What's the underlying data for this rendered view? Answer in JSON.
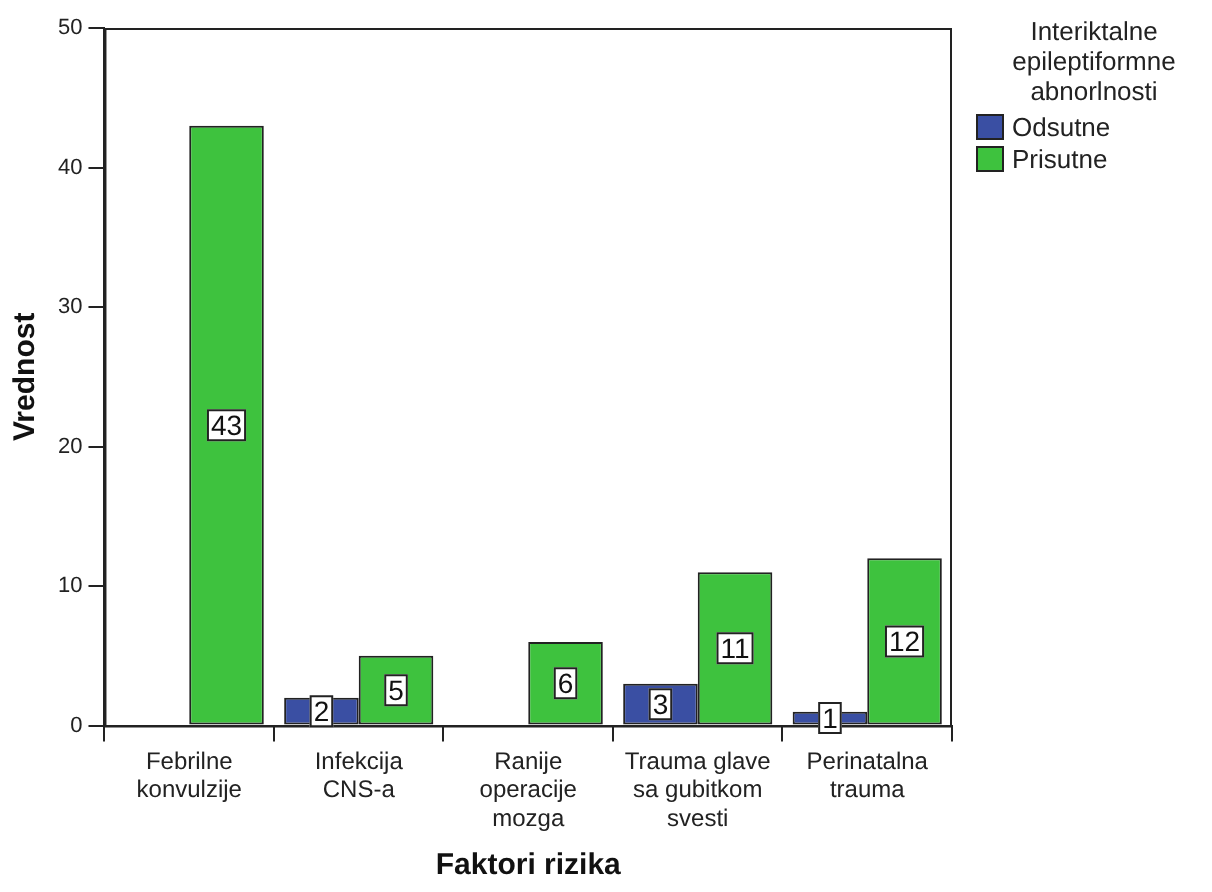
{
  "chart_data": {
    "type": "bar",
    "xlabel": "Faktori rizika",
    "ylabel": "Vrednost",
    "legend_title": "Interiktalne epileptiformne abnorlnosti",
    "legend": "right",
    "grid": false,
    "categories": [
      "Febrilne konvulzije",
      "Infekcija CNS-a",
      "Ranije operacije mozga",
      "Trauma glave sa gubitkom svesti",
      "Perinatalna trauma"
    ],
    "ylim": [
      0,
      50
    ],
    "yticks": [
      0,
      10,
      20,
      30,
      40,
      50
    ],
    "series": [
      {
        "name": "Odsutne",
        "color": "#3a4fa3",
        "values": [
          null,
          2,
          null,
          3,
          1
        ],
        "value_labels": [
          null,
          "2",
          null,
          "3",
          "1"
        ]
      },
      {
        "name": "Prisutne",
        "color": "#3ec23e",
        "values": [
          43,
          5,
          6,
          11,
          12
        ],
        "value_labels": [
          "43",
          "5",
          "6",
          "11",
          "12"
        ]
      }
    ]
  }
}
